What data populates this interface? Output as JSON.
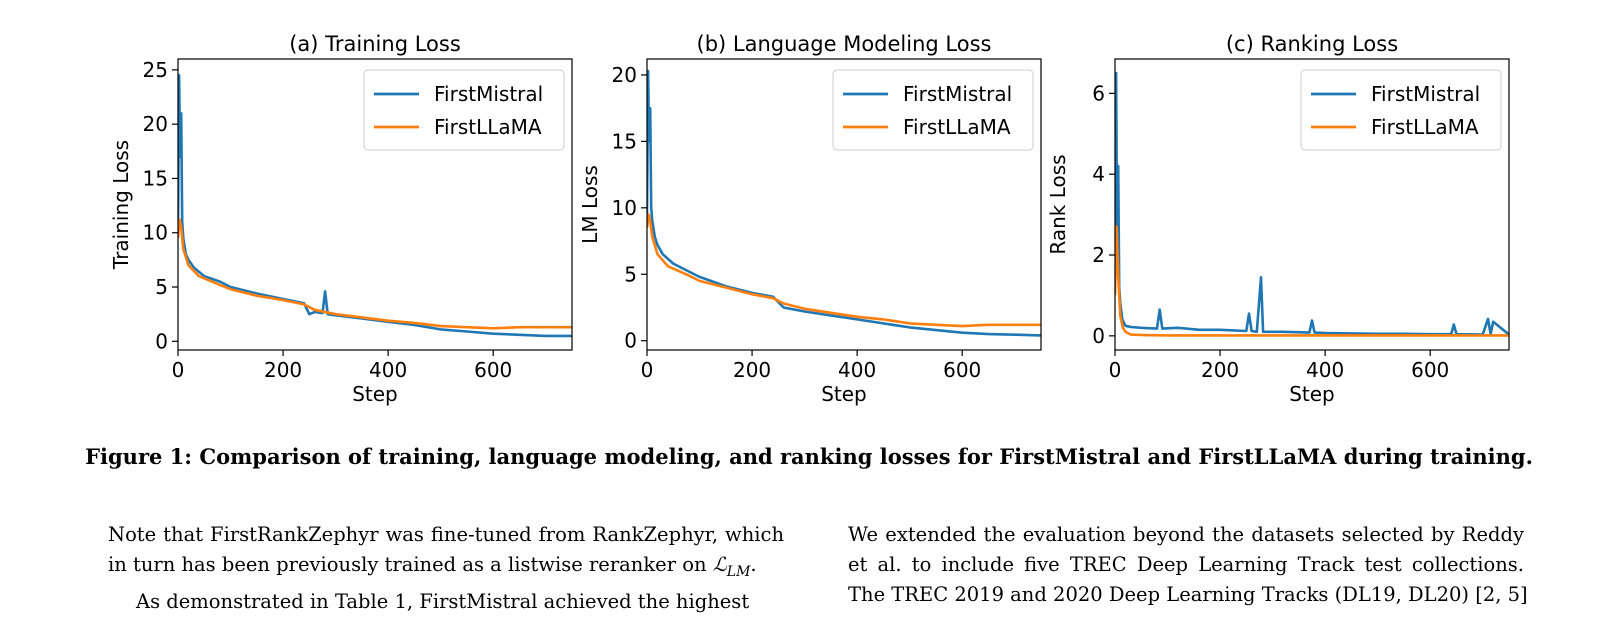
{
  "chart_data": [
    {
      "type": "line",
      "title": "(a) Training Loss",
      "xlabel": "Step",
      "ylabel": "Training Loss",
      "xlim": [
        0,
        750
      ],
      "ylim": [
        -0.8,
        26
      ],
      "xticks": [
        0,
        200,
        400,
        600
      ],
      "yticks": [
        0,
        5,
        10,
        15,
        20,
        25
      ],
      "legend": "top-right",
      "series": [
        {
          "name": "FirstMistral",
          "color": "#1f77b4",
          "x": [
            0,
            2,
            4,
            6,
            8,
            10,
            15,
            20,
            30,
            50,
            80,
            100,
            150,
            200,
            240,
            250,
            260,
            275,
            280,
            285,
            300,
            350,
            400,
            450,
            500,
            550,
            600,
            650,
            700,
            750
          ],
          "y": [
            10.5,
            24.5,
            17.0,
            21.0,
            11.0,
            9.5,
            8.0,
            7.5,
            6.8,
            6.0,
            5.5,
            5.0,
            4.4,
            3.9,
            3.5,
            2.5,
            2.7,
            2.6,
            4.6,
            2.5,
            2.4,
            2.1,
            1.8,
            1.5,
            1.1,
            0.9,
            0.7,
            0.6,
            0.5,
            0.5
          ]
        },
        {
          "name": "FirstLLaMA",
          "color": "#ff7f0e",
          "x": [
            0,
            3,
            6,
            10,
            20,
            40,
            80,
            100,
            150,
            200,
            240,
            260,
            300,
            350,
            400,
            450,
            500,
            550,
            600,
            650,
            700,
            750
          ],
          "y": [
            9.5,
            11.2,
            10.5,
            8.5,
            7.0,
            6.0,
            5.2,
            4.8,
            4.2,
            3.8,
            3.4,
            2.9,
            2.5,
            2.2,
            1.9,
            1.7,
            1.4,
            1.3,
            1.2,
            1.3,
            1.3,
            1.3
          ]
        }
      ]
    },
    {
      "type": "line",
      "title": "(b) Language Modeling Loss",
      "xlabel": "Step",
      "ylabel": "LM Loss",
      "xlim": [
        0,
        750
      ],
      "ylim": [
        -0.7,
        21.2
      ],
      "xticks": [
        0,
        200,
        400,
        600
      ],
      "yticks": [
        0,
        5,
        10,
        15,
        20
      ],
      "legend": "top-right",
      "series": [
        {
          "name": "FirstMistral",
          "color": "#1f77b4",
          "x": [
            0,
            2,
            4,
            6,
            8,
            10,
            15,
            20,
            30,
            50,
            80,
            100,
            150,
            200,
            240,
            260,
            300,
            350,
            400,
            450,
            500,
            550,
            600,
            650,
            700,
            750
          ],
          "y": [
            9.5,
            20.3,
            15.0,
            17.5,
            10.0,
            9.0,
            7.8,
            7.2,
            6.5,
            5.8,
            5.2,
            4.8,
            4.1,
            3.6,
            3.3,
            2.5,
            2.2,
            1.9,
            1.6,
            1.3,
            1.0,
            0.8,
            0.6,
            0.5,
            0.45,
            0.4
          ]
        },
        {
          "name": "FirstLLaMA",
          "color": "#ff7f0e",
          "x": [
            0,
            3,
            6,
            10,
            20,
            40,
            80,
            100,
            150,
            200,
            240,
            260,
            300,
            350,
            400,
            450,
            500,
            550,
            600,
            650,
            700,
            750
          ],
          "y": [
            8.5,
            9.5,
            9.0,
            7.8,
            6.5,
            5.6,
            4.9,
            4.5,
            4.0,
            3.5,
            3.2,
            2.8,
            2.4,
            2.1,
            1.8,
            1.6,
            1.3,
            1.2,
            1.1,
            1.2,
            1.2,
            1.2
          ]
        }
      ]
    },
    {
      "type": "line",
      "title": "(c) Ranking Loss",
      "xlabel": "Step",
      "ylabel": "Rank Loss",
      "xlim": [
        0,
        750
      ],
      "ylim": [
        -0.35,
        6.85
      ],
      "xticks": [
        0,
        200,
        400,
        600
      ],
      "yticks": [
        0,
        2,
        4,
        6
      ],
      "legend": "top-right",
      "series": [
        {
          "name": "FirstMistral",
          "color": "#1f77b4",
          "x": [
            0,
            2,
            4,
            6,
            8,
            10,
            14,
            20,
            30,
            50,
            80,
            85,
            90,
            120,
            160,
            200,
            250,
            255,
            260,
            270,
            278,
            282,
            290,
            320,
            370,
            375,
            380,
            400,
            450,
            500,
            550,
            600,
            640,
            645,
            650,
            700,
            710,
            715,
            720,
            750
          ],
          "y": [
            1.5,
            6.5,
            2.5,
            4.2,
            1.2,
            0.8,
            0.4,
            0.25,
            0.22,
            0.2,
            0.18,
            0.65,
            0.18,
            0.2,
            0.15,
            0.15,
            0.12,
            0.55,
            0.12,
            0.1,
            1.45,
            0.1,
            0.1,
            0.1,
            0.08,
            0.38,
            0.08,
            0.07,
            0.06,
            0.05,
            0.05,
            0.04,
            0.04,
            0.28,
            0.04,
            0.03,
            0.42,
            0.05,
            0.35,
            0.03
          ]
        },
        {
          "name": "FirstLLaMA",
          "color": "#ff7f0e",
          "x": [
            0,
            3,
            6,
            10,
            15,
            20,
            30,
            50,
            100,
            200,
            300,
            400,
            500,
            600,
            700,
            750
          ],
          "y": [
            1.0,
            2.7,
            1.5,
            0.5,
            0.2,
            0.1,
            0.03,
            0.02,
            0.01,
            0.01,
            0.01,
            0.01,
            0.01,
            0.01,
            0.01,
            0.01
          ]
        }
      ]
    }
  ],
  "caption": "Figure 1: Comparison of training, language modeling, and ranking losses for FirstMistral and FirstLLaMA during training.",
  "body": {
    "left": {
      "line1": "Note that FirstRankZephyr was fine-tuned from RankZephyr, which",
      "line2": "in turn has been previously trained as a listwise reranker on",
      "math_symbol": "ℒ",
      "math_sub": "LM",
      "line2_end": ".",
      "line3": "As demonstrated in Table 1, FirstMistral achieved the highest"
    },
    "right": {
      "line1": "We extended the evaluation beyond the datasets selected by Reddy",
      "line2": "et al. to include five TREC Deep Learning Track test collections.",
      "line3": "The TREC 2019 and 2020 Deep Learning Tracks (DL19, DL20) [2, 5]"
    }
  }
}
